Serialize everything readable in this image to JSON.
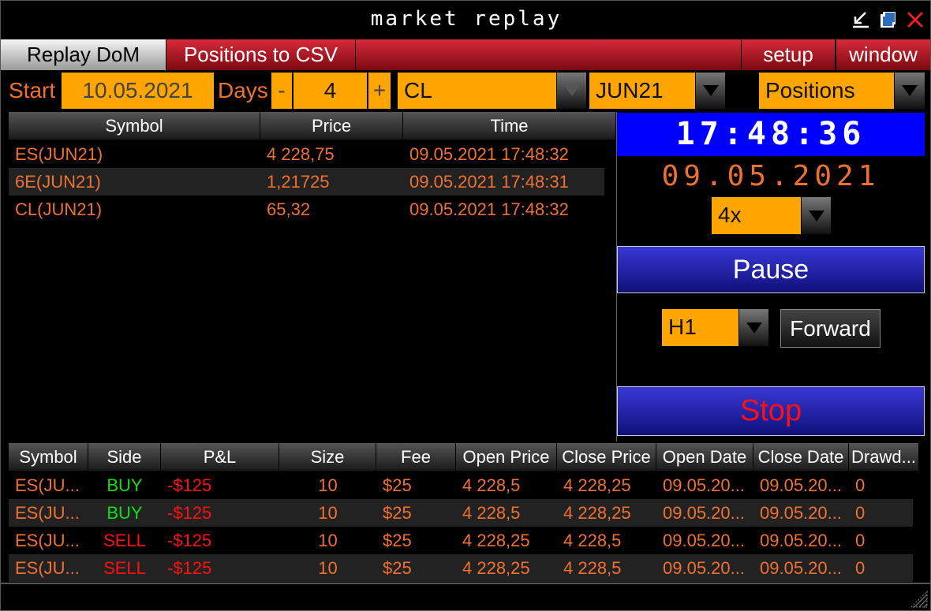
{
  "window": {
    "title": "market replay",
    "icons": [
      "minimize-arrow-icon",
      "restore-icon",
      "close-icon"
    ],
    "colors": {
      "accent": "#ffa500",
      "text": "#f07030",
      "clock_bg": "#0000ff"
    }
  },
  "menu": {
    "replay_dom": "Replay DoM",
    "positions_csv": "Positions to CSV",
    "setup": "setup",
    "window": "window"
  },
  "controls": {
    "start_label": "Start",
    "start_date": "10.05.2021",
    "days_label": "Days",
    "minus": "-",
    "days": "4",
    "plus": "+",
    "symbol": "CL",
    "contract": "JUN21",
    "view": "Positions"
  },
  "quotes": {
    "columns": [
      "Symbol",
      "Price",
      "Time"
    ],
    "rows": [
      [
        "ES(JUN21)",
        "4 228,75",
        "09.05.2021 17:48:32"
      ],
      [
        "6E(JUN21)",
        "1,21725",
        "09.05.2021 17:48:31"
      ],
      [
        "CL(JUN21)",
        "65,32",
        "09.05.2021 17:48:32"
      ]
    ]
  },
  "replay": {
    "clock": "17:48:36",
    "date": "09.05.2021",
    "speed": "4x",
    "pause": "Pause",
    "timeframe": "H1",
    "forward": "Forward",
    "stop": "Stop"
  },
  "positions": {
    "columns": [
      "Symbol",
      "Side",
      "P&L",
      "Size",
      "Fee",
      "Open Price",
      "Close Price",
      "Open Date",
      "Close Date",
      "Drawd..."
    ],
    "rows": [
      [
        "ES(JU...",
        "BUY",
        "-$125",
        "10",
        "$25",
        "4 228,5",
        "4 228,25",
        "09.05.20...",
        "09.05.20...",
        "0"
      ],
      [
        "ES(JU...",
        "BUY",
        "-$125",
        "10",
        "$25",
        "4 228,5",
        "4 228,25",
        "09.05.20...",
        "09.05.20...",
        "0"
      ],
      [
        "ES(JU...",
        "SELL",
        "-$125",
        "10",
        "$25",
        "4 228,25",
        "4 228,5",
        "09.05.20...",
        "09.05.20...",
        "0"
      ],
      [
        "ES(JU...",
        "SELL",
        "-$125",
        "10",
        "$25",
        "4 228,25",
        "4 228,5",
        "09.05.20...",
        "09.05.20...",
        "0"
      ]
    ]
  }
}
